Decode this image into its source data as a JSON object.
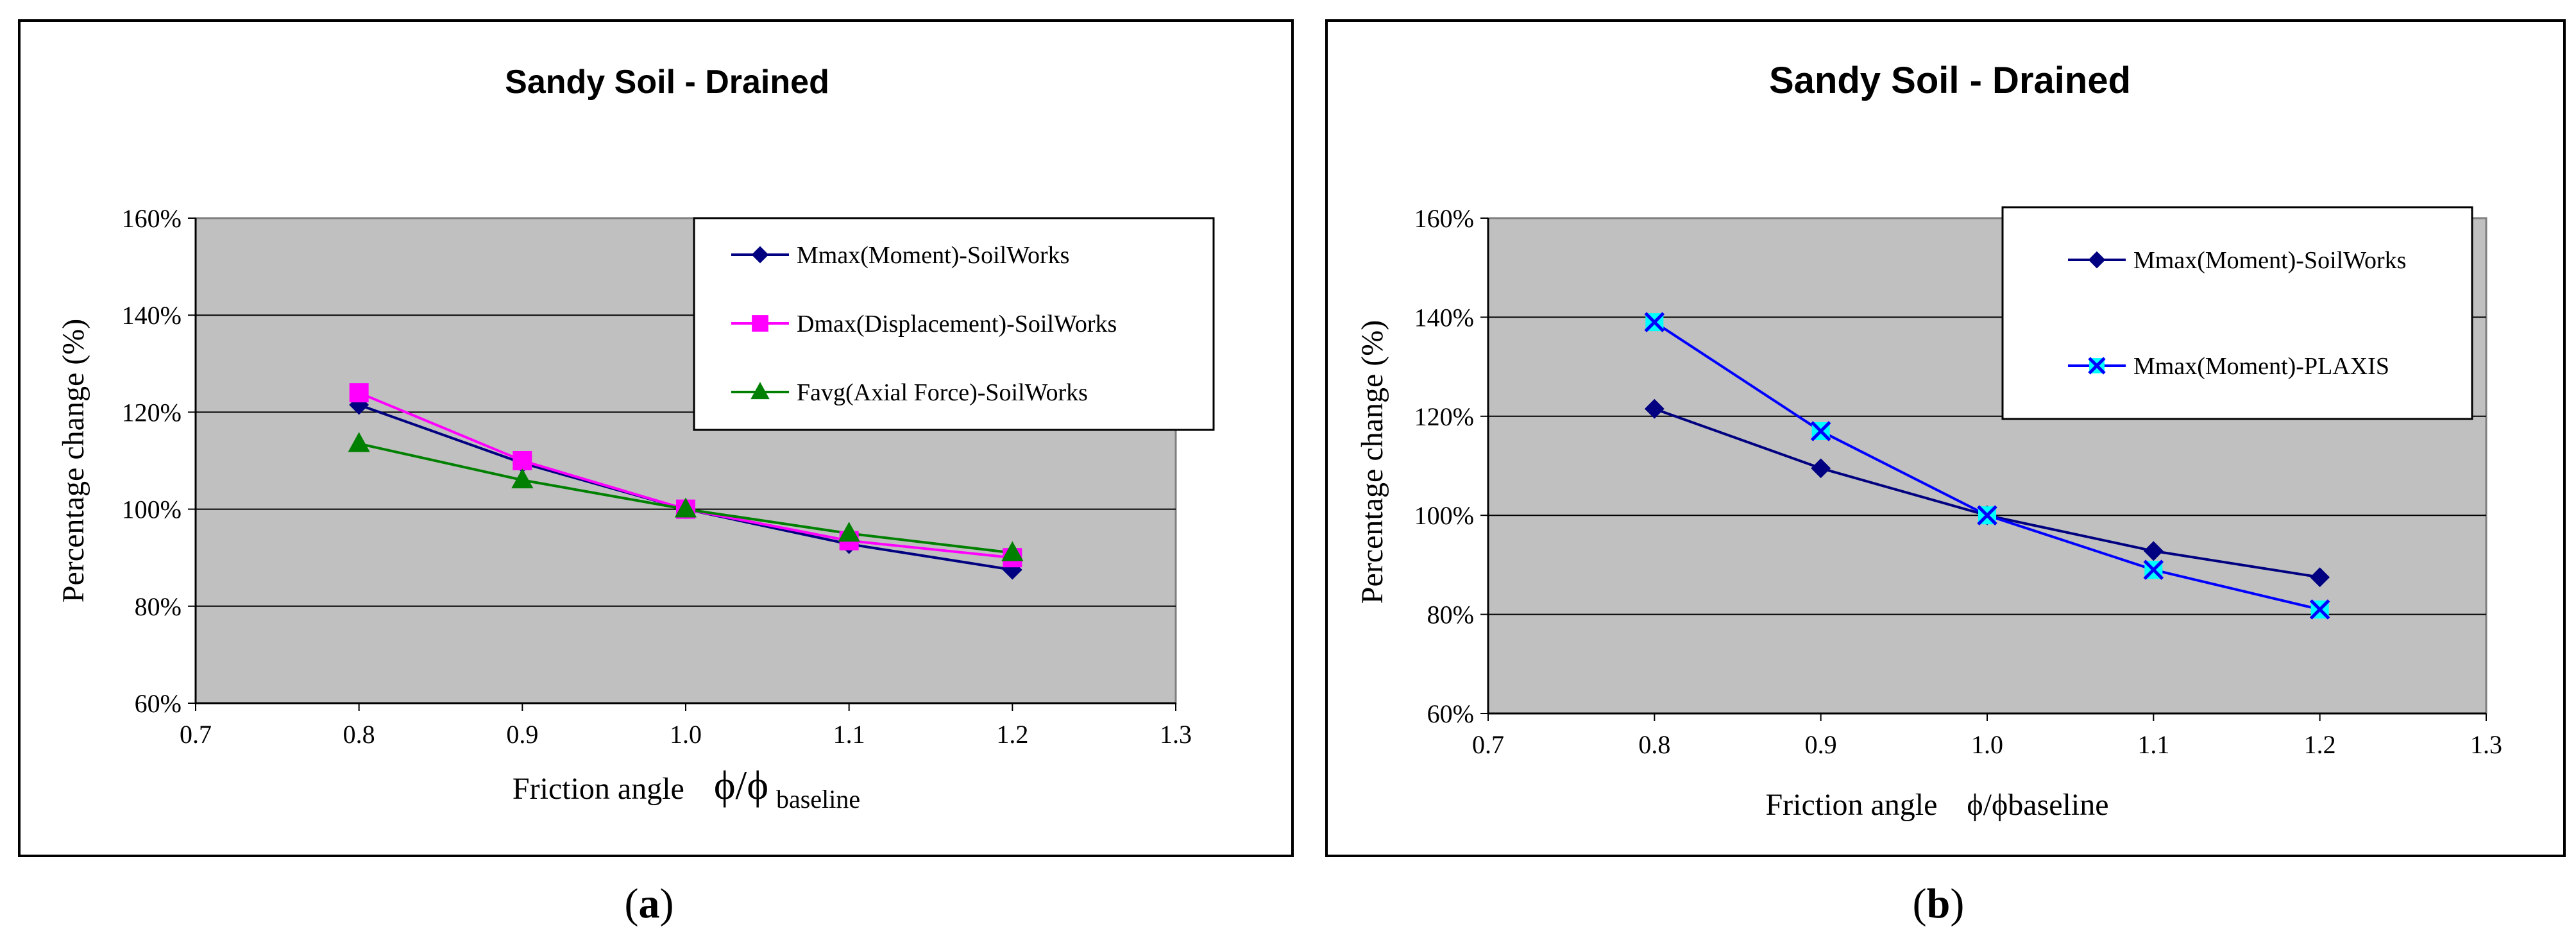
{
  "panels": [
    {
      "label": "a",
      "title": "Sandy Soil - Drained",
      "xlabel_main": "Friction angle",
      "xlabel_phi": "ϕ/ϕ",
      "xlabel_sub": "baseline",
      "ylabel": "Percentage  change   (%)"
    },
    {
      "label": "b",
      "title": "Sandy Soil - Drained",
      "xlabel_main": "Friction  angle",
      "xlabel_phi": "ϕ/ϕbaseline",
      "xlabel_sub": "",
      "ylabel": "Percentage  change   (%)"
    }
  ],
  "chart_data": [
    {
      "type": "line",
      "title": "Sandy Soil - Drained",
      "xlabel": "Friction angle ϕ/ϕbaseline",
      "ylabel": "Percentage change (%)",
      "xlim": [
        0.7,
        1.3
      ],
      "ylim": [
        60,
        160
      ],
      "xticks": [
        "0.7",
        "0.8",
        "0.9",
        "1.0",
        "1.1",
        "1.2",
        "1.3"
      ],
      "yticks": [
        "60%",
        "80%",
        "100%",
        "120%",
        "140%",
        "160%"
      ],
      "grid": "horizontal",
      "plot_background": "#c0c0c0",
      "legend_position": "top-right",
      "x": [
        0.8,
        0.9,
        1.0,
        1.1,
        1.2
      ],
      "series": [
        {
          "name": "Mmax(Moment)-SoilWorks",
          "values": [
            121.5,
            109.5,
            100,
            92.8,
            87.5
          ],
          "color": "#000080",
          "marker": "diamond"
        },
        {
          "name": "Dmax(Displacement)-SoilWorks",
          "values": [
            124,
            110,
            100,
            93.5,
            90
          ],
          "color": "#ff00ff",
          "marker": "square"
        },
        {
          "name": "Favg(Axial Force)-SoilWorks",
          "values": [
            113.5,
            106,
            100,
            95,
            91
          ],
          "color": "#008000",
          "marker": "triangle"
        }
      ]
    },
    {
      "type": "line",
      "title": "Sandy Soil - Drained",
      "xlabel": "Friction angle ϕ/ϕbaseline",
      "ylabel": "Percentage change (%)",
      "xlim": [
        0.7,
        1.3
      ],
      "ylim": [
        60,
        160
      ],
      "xticks": [
        "0.7",
        "0.8",
        "0.9",
        "1.0",
        "1.1",
        "1.2",
        "1.3"
      ],
      "yticks": [
        "60%",
        "80%",
        "100%",
        "120%",
        "140%",
        "160%"
      ],
      "grid": "horizontal",
      "plot_background": "#c0c0c0",
      "legend_position": "top-right",
      "x": [
        0.8,
        0.9,
        1.0,
        1.1,
        1.2
      ],
      "series": [
        {
          "name": "Mmax(Moment)-SoilWorks",
          "values": [
            121.5,
            109.5,
            100,
            92.8,
            87.5
          ],
          "color": "#000080",
          "marker": "diamond"
        },
        {
          "name": "Mmax(Moment)-PLAXIS",
          "values": [
            139,
            117,
            100,
            89,
            81
          ],
          "color": "#0000ff",
          "marker_color": "#00ffff",
          "marker": "x-square"
        }
      ]
    }
  ]
}
